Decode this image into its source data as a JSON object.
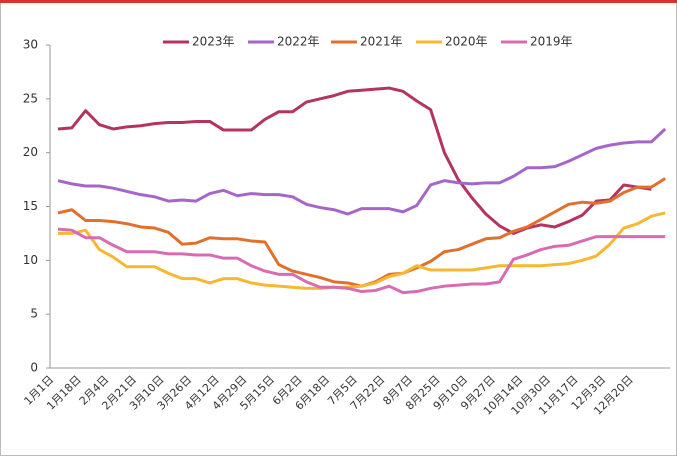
{
  "chart_data": {
    "type": "line",
    "categories": [
      "1月1日",
      null,
      "1月18日",
      null,
      "2月4日",
      null,
      "2月21日",
      null,
      "3月10日",
      null,
      "3月26日",
      null,
      "4月12日",
      null,
      "4月29日",
      null,
      "5月15日",
      null,
      "6月2日",
      null,
      "6月18日",
      null,
      "7月5日",
      null,
      "7月22日",
      null,
      "8月7日",
      null,
      "8月25日",
      null,
      "9月10日",
      null,
      "9月27日",
      null,
      "10月14日",
      null,
      "10月30日",
      null,
      "11月17日",
      null,
      "12月3日",
      null,
      "12月20日",
      null,
      null
    ],
    "series": [
      {
        "name": "2023年",
        "color": "#b5345f",
        "values": [
          22.2,
          22.3,
          23.9,
          22.6,
          22.2,
          22.4,
          22.5,
          22.7,
          22.8,
          22.8,
          22.9,
          22.9,
          22.1,
          22.1,
          22.1,
          23.1,
          23.8,
          23.8,
          24.7,
          25.0,
          25.3,
          25.7,
          25.8,
          25.9,
          26.0,
          25.7,
          24.8,
          24.0,
          20.0,
          17.5,
          15.8,
          14.3,
          13.2,
          12.5,
          13.0,
          13.3,
          13.1,
          13.6,
          14.2,
          15.5,
          15.6,
          17.0,
          16.8,
          16.6,
          null
        ]
      },
      {
        "name": "2022年",
        "color": "#a666c8",
        "values": [
          17.4,
          17.1,
          16.9,
          16.9,
          16.7,
          16.4,
          16.1,
          15.9,
          15.5,
          15.6,
          15.5,
          16.2,
          16.5,
          16.0,
          16.2,
          16.1,
          16.1,
          15.9,
          15.2,
          14.9,
          14.7,
          14.3,
          14.8,
          14.8,
          14.8,
          14.5,
          15.1,
          17.0,
          17.4,
          17.2,
          17.1,
          17.2,
          17.2,
          17.8,
          18.6,
          18.6,
          18.7,
          19.2,
          19.8,
          20.4,
          20.7,
          20.9,
          21.0,
          21.0,
          22.2
        ]
      },
      {
        "name": "2021年",
        "color": "#e0702c",
        "values": [
          14.4,
          14.7,
          13.7,
          13.7,
          13.6,
          13.4,
          13.1,
          13.0,
          12.6,
          11.5,
          11.6,
          12.1,
          12.0,
          12.0,
          11.8,
          11.7,
          9.6,
          9.0,
          8.7,
          8.4,
          8.0,
          7.9,
          7.6,
          8.0,
          8.7,
          8.8,
          9.3,
          9.9,
          10.8,
          11.0,
          11.5,
          12.0,
          12.1,
          12.7,
          13.1,
          13.8,
          14.5,
          15.2,
          15.4,
          15.3,
          15.5,
          16.3,
          16.8,
          16.8,
          17.6
        ]
      },
      {
        "name": "2020年",
        "color": "#f7b731",
        "values": [
          12.5,
          12.5,
          12.8,
          11.0,
          10.3,
          9.4,
          9.4,
          9.4,
          8.8,
          8.3,
          8.3,
          7.9,
          8.3,
          8.3,
          7.9,
          7.7,
          7.6,
          7.5,
          7.4,
          7.4,
          7.5,
          7.5,
          7.6,
          7.9,
          8.5,
          8.8,
          9.5,
          9.1,
          9.1,
          9.1,
          9.1,
          9.3,
          9.5,
          9.5,
          9.5,
          9.5,
          9.6,
          9.7,
          10.0,
          10.4,
          11.5,
          13.0,
          13.4,
          14.1,
          14.4
        ]
      },
      {
        "name": "2019年",
        "color": "#d86cb2",
        "values": [
          12.9,
          12.8,
          12.1,
          12.1,
          11.4,
          10.8,
          10.8,
          10.8,
          10.6,
          10.6,
          10.5,
          10.5,
          10.2,
          10.2,
          9.5,
          9.0,
          8.7,
          8.7,
          8.0,
          7.5,
          7.5,
          7.4,
          7.1,
          7.2,
          7.6,
          7.0,
          7.1,
          7.4,
          7.6,
          7.7,
          7.8,
          7.8,
          8.0,
          10.1,
          10.5,
          11.0,
          11.3,
          11.4,
          11.8,
          12.2,
          12.2,
          12.2,
          12.2,
          12.2,
          12.2
        ]
      }
    ],
    "ylim": [
      0,
      30
    ],
    "yticks": [
      0,
      5,
      10,
      15,
      20,
      25,
      30
    ],
    "legend": "top"
  }
}
